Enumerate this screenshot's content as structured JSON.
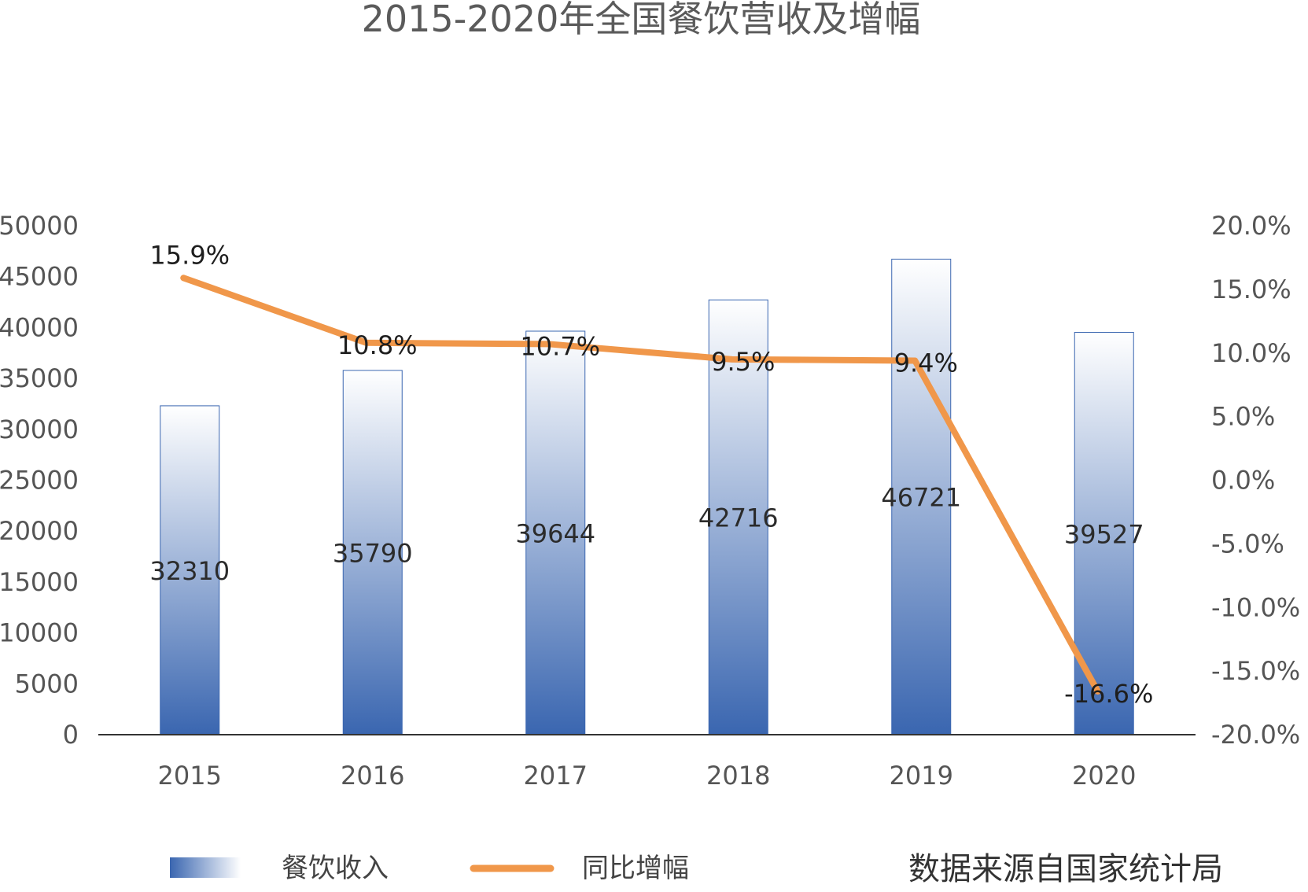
{
  "chart_data": {
    "type": "bar",
    "title": "2015-2020年全国餐饮营收及增幅",
    "categories": [
      "2015",
      "2016",
      "2017",
      "2018",
      "2019",
      "2020"
    ],
    "series": [
      {
        "name": "餐饮收入",
        "type": "bar",
        "axis": "left",
        "values": [
          32310,
          35790,
          39644,
          42716,
          46721,
          39527
        ],
        "labels": [
          "32310",
          "35790",
          "39644",
          "42716",
          "46721",
          "39527"
        ]
      },
      {
        "name": "同比增幅",
        "type": "line",
        "axis": "right",
        "values": [
          15.9,
          10.8,
          10.7,
          9.5,
          9.4,
          -16.6
        ],
        "labels": [
          "15.9%",
          "10.8%",
          "10.7%",
          "9.5%",
          "9.4%",
          "-16.6%"
        ]
      }
    ],
    "y_left": {
      "ylim": [
        0,
        50000
      ],
      "ticks": [
        "0",
        "5000",
        "10000",
        "15000",
        "20000",
        "25000",
        "30000",
        "35000",
        "40000",
        "45000",
        "50000"
      ]
    },
    "y_right": {
      "ylim": [
        -20,
        20
      ],
      "ticks": [
        "-20.0%",
        "-15.0%",
        "-10.0%",
        "-5.0%",
        "0.0%",
        "5.0%",
        "10.0%",
        "15.0%",
        "20.0%"
      ]
    },
    "grid": false,
    "legend_position": "bottom-left",
    "colors": {
      "bar_top": "#ffffff",
      "bar_bottom": "#3a66b0",
      "bar_border": "#3a66b0",
      "line": "#f0974a",
      "axis": "#333333"
    }
  },
  "source_note": "数据来源自国家统计局"
}
